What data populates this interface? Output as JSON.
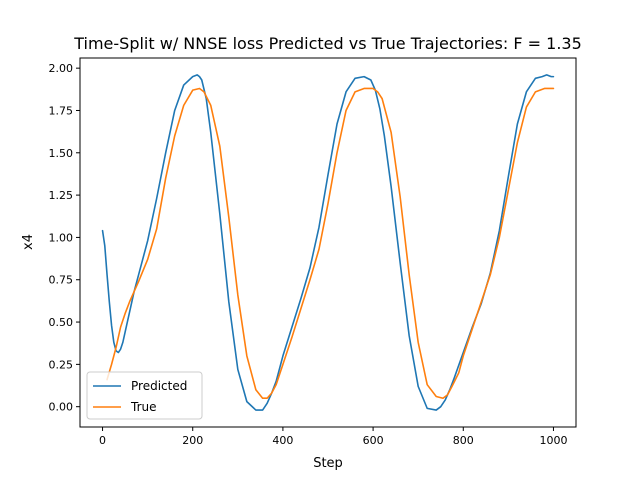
{
  "chart_data": {
    "type": "line",
    "title": "Time-Split w/ NNSE loss Predicted vs True Trajectories: F = 1.35",
    "xlabel": "Step",
    "ylabel": "x4",
    "xlim": [
      -50,
      1050
    ],
    "ylim": [
      -0.12,
      2.06
    ],
    "xticks": [
      0,
      200,
      400,
      600,
      800,
      1000
    ],
    "xtick_labels": [
      "0",
      "200",
      "400",
      "600",
      "800",
      "1000"
    ],
    "yticks": [
      0.0,
      0.25,
      0.5,
      0.75,
      1.0,
      1.25,
      1.5,
      1.75,
      2.0
    ],
    "ytick_labels": [
      "0.00",
      "0.25",
      "0.50",
      "0.75",
      "1.00",
      "1.25",
      "1.50",
      "1.75",
      "2.00"
    ],
    "grid": false,
    "legend_position": "lower-left",
    "series": [
      {
        "name": "Predicted",
        "color": "#1f77b4",
        "x": [
          0,
          5,
          10,
          15,
          20,
          25,
          30,
          35,
          40,
          45,
          50,
          60,
          70,
          80,
          100,
          120,
          140,
          160,
          180,
          200,
          210,
          215,
          220,
          230,
          240,
          260,
          280,
          300,
          320,
          340,
          355,
          365,
          375,
          385,
          400,
          420,
          440,
          460,
          480,
          500,
          520,
          540,
          560,
          580,
          595,
          605,
          615,
          625,
          640,
          660,
          680,
          700,
          720,
          740,
          750,
          760,
          770,
          780,
          800,
          820,
          840,
          860,
          880,
          900,
          920,
          940,
          960,
          975,
          985,
          995,
          1000
        ],
        "y": [
          1.04,
          0.95,
          0.78,
          0.62,
          0.48,
          0.38,
          0.33,
          0.32,
          0.34,
          0.38,
          0.44,
          0.56,
          0.68,
          0.78,
          0.98,
          1.23,
          1.5,
          1.75,
          1.9,
          1.95,
          1.96,
          1.95,
          1.93,
          1.82,
          1.62,
          1.14,
          0.62,
          0.22,
          0.03,
          -0.02,
          -0.02,
          0.02,
          0.08,
          0.15,
          0.3,
          0.47,
          0.64,
          0.82,
          1.06,
          1.37,
          1.67,
          1.86,
          1.94,
          1.95,
          1.93,
          1.87,
          1.76,
          1.6,
          1.3,
          0.85,
          0.42,
          0.12,
          -0.01,
          -0.02,
          0.0,
          0.04,
          0.1,
          0.17,
          0.32,
          0.47,
          0.61,
          0.79,
          1.04,
          1.36,
          1.67,
          1.86,
          1.94,
          1.95,
          1.96,
          1.95,
          1.95
        ]
      },
      {
        "name": "True",
        "color": "#ff7f0e",
        "x": [
          10,
          20,
          30,
          40,
          50,
          60,
          70,
          80,
          100,
          120,
          140,
          160,
          180,
          200,
          215,
          225,
          240,
          260,
          280,
          300,
          320,
          340,
          355,
          365,
          375,
          385,
          400,
          420,
          440,
          460,
          480,
          500,
          520,
          540,
          560,
          580,
          600,
          610,
          620,
          640,
          660,
          680,
          700,
          720,
          740,
          755,
          765,
          775,
          790,
          800,
          820,
          840,
          860,
          880,
          900,
          920,
          940,
          960,
          980,
          990,
          1000
        ],
        "y": [
          0.16,
          0.25,
          0.35,
          0.47,
          0.55,
          0.62,
          0.68,
          0.74,
          0.87,
          1.05,
          1.35,
          1.6,
          1.78,
          1.87,
          1.88,
          1.86,
          1.78,
          1.54,
          1.12,
          0.66,
          0.3,
          0.1,
          0.05,
          0.05,
          0.08,
          0.13,
          0.25,
          0.41,
          0.58,
          0.75,
          0.93,
          1.2,
          1.5,
          1.75,
          1.86,
          1.88,
          1.88,
          1.86,
          1.82,
          1.62,
          1.24,
          0.78,
          0.38,
          0.13,
          0.06,
          0.05,
          0.07,
          0.12,
          0.2,
          0.3,
          0.46,
          0.62,
          0.78,
          1.0,
          1.28,
          1.56,
          1.77,
          1.86,
          1.88,
          1.88,
          1.88
        ]
      }
    ]
  }
}
